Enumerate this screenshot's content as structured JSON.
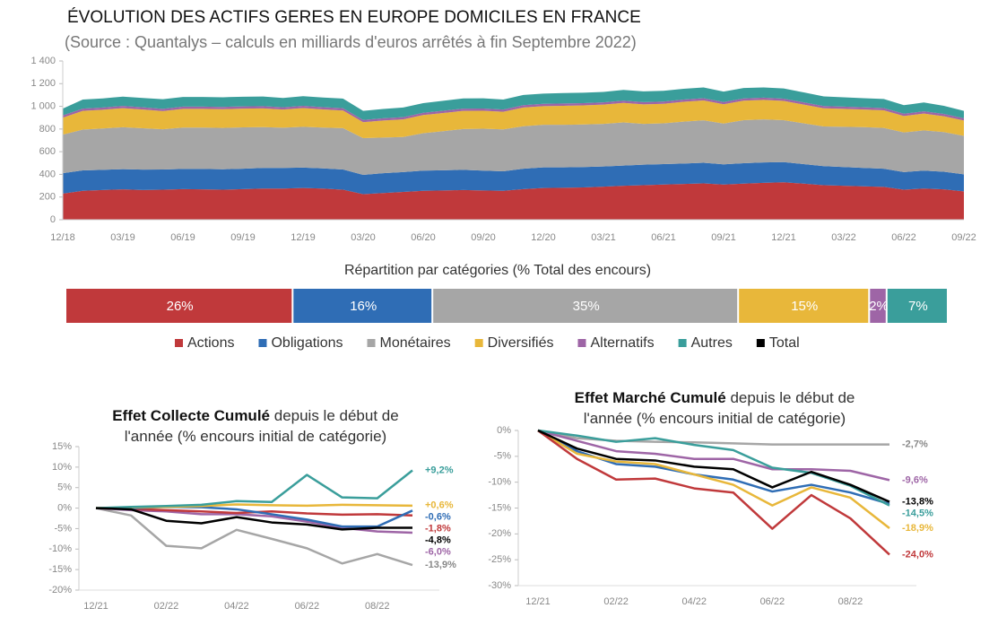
{
  "chart_data": [
    {
      "type": "area",
      "stacked": true,
      "title": "ÉVOLUTION DES ACTIFS GERES EN EUROPE DOMICILES EN FRANCE",
      "subtitle": "(Source : Quantalys – calculs en milliards d'euros arrêtés à fin Septembre 2022)",
      "categories": [
        "12/18",
        null,
        null,
        "03/19",
        null,
        null,
        "06/19",
        null,
        null,
        "09/19",
        null,
        null,
        "12/19",
        null,
        null,
        "03/20",
        null,
        null,
        "06/20",
        null,
        null,
        "09/20",
        null,
        null,
        "12/20",
        null,
        null,
        "03/21",
        null,
        null,
        "06/21",
        null,
        null,
        "09/21",
        null,
        null,
        "12/21",
        null,
        null,
        "03/22",
        null,
        null,
        "06/22",
        null,
        null,
        "09/22"
      ],
      "ylim": [
        0,
        1400
      ],
      "yticks": [
        0,
        200,
        400,
        600,
        800,
        {
          "value": 1000,
          "label": "1 000"
        },
        {
          "value": 1200,
          "label": "1 200"
        },
        {
          "value": 1400,
          "label": "1 400"
        }
      ],
      "grid": false,
      "series": [
        {
          "name": "Actions",
          "color": "#c0393b",
          "values": [
            230,
            255,
            262,
            268,
            262,
            265,
            270,
            268,
            265,
            270,
            275,
            275,
            280,
            275,
            265,
            225,
            235,
            245,
            255,
            258,
            262,
            258,
            255,
            270,
            280,
            282,
            285,
            292,
            300,
            305,
            310,
            315,
            320,
            310,
            318,
            325,
            330,
            318,
            305,
            300,
            295,
            290,
            265,
            275,
            268,
            250
          ]
        },
        {
          "name": "Obligations",
          "color": "#2f6db5",
          "values": [
            180,
            180,
            178,
            178,
            180,
            178,
            178,
            180,
            180,
            180,
            182,
            182,
            180,
            178,
            178,
            170,
            175,
            175,
            178,
            178,
            178,
            175,
            172,
            180,
            182,
            180,
            180,
            178,
            178,
            180,
            180,
            180,
            182,
            178,
            180,
            180,
            178,
            172,
            168,
            165,
            162,
            160,
            155,
            158,
            155,
            150
          ]
        },
        {
          "name": "Monétaires",
          "color": "#a6a6a6",
          "values": [
            340,
            360,
            365,
            370,
            365,
            355,
            365,
            365,
            365,
            365,
            360,
            355,
            360,
            360,
            365,
            325,
            315,
            310,
            330,
            345,
            360,
            370,
            370,
            375,
            375,
            375,
            375,
            375,
            380,
            360,
            360,
            370,
            375,
            360,
            380,
            380,
            370,
            360,
            350,
            355,
            360,
            360,
            350,
            355,
            350,
            340
          ]
        },
        {
          "name": "Diversifiés",
          "color": "#e8b73a",
          "values": [
            150,
            165,
            165,
            168,
            165,
            160,
            165,
            165,
            165,
            165,
            165,
            160,
            165,
            160,
            155,
            140,
            150,
            155,
            160,
            160,
            160,
            158,
            155,
            165,
            165,
            168,
            168,
            170,
            172,
            172,
            172,
            175,
            175,
            170,
            172,
            172,
            170,
            165,
            160,
            158,
            155,
            155,
            145,
            148,
            140,
            135
          ]
        },
        {
          "name": "Alternatifs",
          "color": "#9e65a6",
          "values": [
            20,
            20,
            20,
            20,
            20,
            20,
            20,
            20,
            20,
            20,
            20,
            20,
            20,
            20,
            20,
            20,
            20,
            20,
            20,
            20,
            20,
            20,
            20,
            20,
            20,
            20,
            20,
            20,
            20,
            20,
            20,
            20,
            20,
            20,
            20,
            20,
            20,
            20,
            20,
            20,
            20,
            20,
            20,
            20,
            20,
            20
          ]
        },
        {
          "name": "Autres",
          "color": "#3a9e9b",
          "values": [
            60,
            80,
            80,
            82,
            82,
            85,
            85,
            85,
            85,
            85,
            85,
            82,
            85,
            85,
            85,
            80,
            82,
            85,
            85,
            88,
            90,
            90,
            88,
            90,
            90,
            92,
            92,
            92,
            95,
            95,
            95,
            95,
            95,
            92,
            92,
            90,
            90,
            88,
            85,
            82,
            80,
            80,
            75,
            78,
            72,
            65
          ]
        }
      ]
    },
    {
      "type": "stacked_bar",
      "title": "Répartition par catégories (% Total des encours)",
      "categories": [
        "Actions",
        "Obligations",
        "Monétaires",
        "Diversifiés",
        "Alternatifs",
        "Autres"
      ],
      "values": [
        26,
        16,
        35,
        15,
        2,
        7
      ],
      "value_labels": [
        "26%",
        "16%",
        "35%",
        "15%",
        "2%",
        "7%"
      ],
      "colors": [
        "#c0393b",
        "#2f6db5",
        "#a6a6a6",
        "#e8b73a",
        "#9e65a6",
        "#3a9e9b"
      ]
    },
    {
      "type": "line",
      "title": "Effet Collecte Cumulé",
      "subtitle": "depuis le début de l'année (% encours initial de catégorie)",
      "categories": [
        "12/21",
        null,
        "02/22",
        null,
        "04/22",
        null,
        "06/22",
        null,
        "08/22",
        null
      ],
      "ylim": [
        -20,
        15
      ],
      "yticks": [
        {
          "value": -20,
          "label": "-20%"
        },
        {
          "value": -15,
          "label": "-15%"
        },
        {
          "value": -10,
          "label": "-10%"
        },
        {
          "value": -5,
          "label": "-5%"
        },
        {
          "value": 0,
          "label": "0%"
        },
        {
          "value": 5,
          "label": "5%"
        },
        {
          "value": 10,
          "label": "10%"
        },
        {
          "value": 15,
          "label": "15%"
        }
      ],
      "series": [
        {
          "name": "Monétaires",
          "color": "#a6a6a6",
          "values": [
            0,
            -1.8,
            -9.2,
            -9.8,
            -5.3,
            -7.5,
            -9.8,
            -13.5,
            -11.2,
            -13.9
          ],
          "value_labels": [
            null,
            null,
            null,
            null,
            null,
            null,
            null,
            null,
            null,
            "-13,9%"
          ]
        },
        {
          "name": "Alternatifs",
          "color": "#9e65a6",
          "values": [
            0,
            -0.5,
            -0.8,
            -1.5,
            -1.5,
            -2.0,
            -3.3,
            -4.8,
            -5.7,
            -6.0
          ],
          "value_labels": [
            null,
            null,
            null,
            null,
            null,
            null,
            null,
            null,
            null,
            "-6,0%"
          ]
        },
        {
          "name": "Actions",
          "color": "#c0393b",
          "values": [
            0,
            -0.2,
            -0.5,
            -0.8,
            -1.2,
            -0.8,
            -1.3,
            -1.6,
            -1.5,
            -1.8
          ],
          "value_labels": [
            null,
            null,
            null,
            null,
            null,
            null,
            null,
            null,
            null,
            "-1,8%"
          ]
        },
        {
          "name": "Obligations",
          "color": "#2f6db5",
          "values": [
            0,
            0,
            0.3,
            0.2,
            -0.3,
            -1.5,
            -2.8,
            -4.5,
            -4.5,
            -0.6
          ],
          "value_labels": [
            null,
            null,
            null,
            null,
            null,
            null,
            null,
            null,
            null,
            "-0,6%"
          ]
        },
        {
          "name": "Diversifiés",
          "color": "#e8b73a",
          "values": [
            0,
            0.2,
            0.3,
            0.5,
            0.9,
            0.7,
            0.6,
            0.8,
            0.7,
            0.6
          ],
          "value_labels": [
            null,
            null,
            null,
            null,
            null,
            null,
            null,
            null,
            null,
            "+0,6%"
          ]
        },
        {
          "name": "Autres",
          "color": "#3a9e9b",
          "values": [
            0,
            0.3,
            0.5,
            0.8,
            1.7,
            1.5,
            8.1,
            2.6,
            2.4,
            9.2
          ],
          "value_labels": [
            null,
            null,
            null,
            null,
            null,
            null,
            null,
            null,
            null,
            "+9,2%"
          ]
        },
        {
          "name": "Total",
          "color": "#000000",
          "values": [
            0,
            -0.3,
            -3.1,
            -3.7,
            -2.2,
            -3.5,
            -4.0,
            -5.2,
            -4.8,
            -4.8
          ],
          "value_labels": [
            null,
            null,
            null,
            null,
            null,
            null,
            null,
            null,
            null,
            "-4,8%"
          ]
        }
      ]
    },
    {
      "type": "line",
      "title": "Effet Marché Cumulé",
      "subtitle": "depuis le début de l'année (% encours initial de catégorie)",
      "categories": [
        "12/21",
        null,
        "02/22",
        null,
        "04/22",
        null,
        "06/22",
        null,
        "08/22",
        null
      ],
      "ylim": [
        -30,
        0
      ],
      "yticks": [
        {
          "value": -30,
          "label": "-30%"
        },
        {
          "value": -25,
          "label": "-25%"
        },
        {
          "value": -20,
          "label": "-20%"
        },
        {
          "value": -15,
          "label": "-15%"
        },
        {
          "value": -10,
          "label": "-10%"
        },
        {
          "value": -5,
          "label": "-5%"
        },
        {
          "value": 0,
          "label": "0%"
        }
      ],
      "series": [
        {
          "name": "Monétaires",
          "color": "#a6a6a6",
          "values": [
            0,
            -1.5,
            -2,
            -2.2,
            -2.3,
            -2.5,
            -2.7,
            -2.7,
            -2.7,
            -2.7
          ],
          "value_labels": [
            null,
            null,
            null,
            null,
            null,
            null,
            null,
            null,
            null,
            "-2,7%"
          ]
        },
        {
          "name": "Alternatifs",
          "color": "#9e65a6",
          "values": [
            0,
            -2,
            -4,
            -4.5,
            -5.5,
            -5.5,
            -7.5,
            -7.5,
            -7.8,
            -9.6
          ],
          "value_labels": [
            null,
            null,
            null,
            null,
            null,
            null,
            null,
            null,
            null,
            "-9,6%"
          ]
        },
        {
          "name": "Obligations",
          "color": "#2f6db5",
          "values": [
            0,
            -4,
            -6.5,
            -7,
            -8.5,
            -9.5,
            -11.8,
            -10.5,
            -12,
            -14.2
          ]
        },
        {
          "name": "Autres",
          "color": "#3a9e9b",
          "values": [
            0,
            -1,
            -2.2,
            -1.5,
            -2.8,
            -3.8,
            -7.2,
            -8.2,
            -10.7,
            -14.5
          ],
          "value_labels": [
            null,
            null,
            null,
            null,
            null,
            null,
            null,
            null,
            null,
            "-14,5%"
          ]
        },
        {
          "name": "Diversifiés",
          "color": "#e8b73a",
          "values": [
            0,
            -4.5,
            -6,
            -6.5,
            -8.5,
            -10.5,
            -14.5,
            -11,
            -13,
            -18.9
          ],
          "value_labels": [
            null,
            null,
            null,
            null,
            null,
            null,
            null,
            null,
            null,
            "-18,9%"
          ]
        },
        {
          "name": "Actions",
          "color": "#c0393b",
          "values": [
            0,
            -5.5,
            -9.5,
            -9.3,
            -11.2,
            -12,
            -19,
            -12.5,
            -17,
            -24
          ],
          "value_labels": [
            null,
            null,
            null,
            null,
            null,
            null,
            null,
            null,
            null,
            "-24,0%"
          ]
        },
        {
          "name": "Total",
          "color": "#000000",
          "values": [
            0,
            -3.5,
            -5.5,
            -5.8,
            -7,
            -7.5,
            -11,
            -8,
            -10.5,
            -13.8
          ],
          "value_labels": [
            null,
            null,
            null,
            null,
            null,
            null,
            null,
            null,
            null,
            "-13,8%"
          ]
        }
      ]
    }
  ]
}
